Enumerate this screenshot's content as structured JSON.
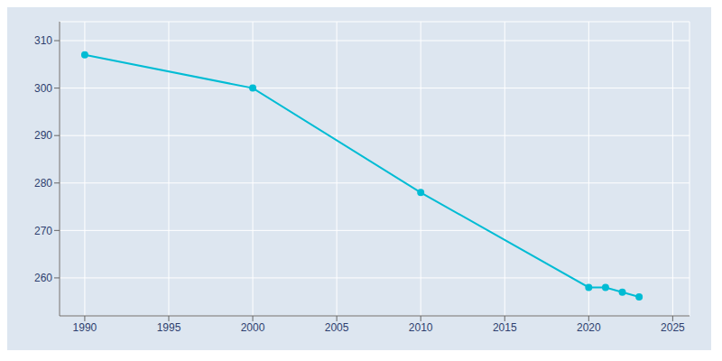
{
  "chart_data": {
    "type": "line",
    "x": [
      1990,
      2000,
      2010,
      2020,
      2021,
      2022,
      2023
    ],
    "values": [
      307,
      300,
      278,
      258,
      258,
      257,
      256
    ],
    "color": "#00BCD4",
    "marker": "o",
    "xlim": [
      1988.5,
      2026
    ],
    "ylim": [
      252,
      314
    ],
    "xticks": [
      1990,
      1995,
      2000,
      2005,
      2010,
      2015,
      2020,
      2025
    ],
    "yticks": [
      260,
      270,
      280,
      290,
      300,
      310
    ],
    "grid": true
  }
}
